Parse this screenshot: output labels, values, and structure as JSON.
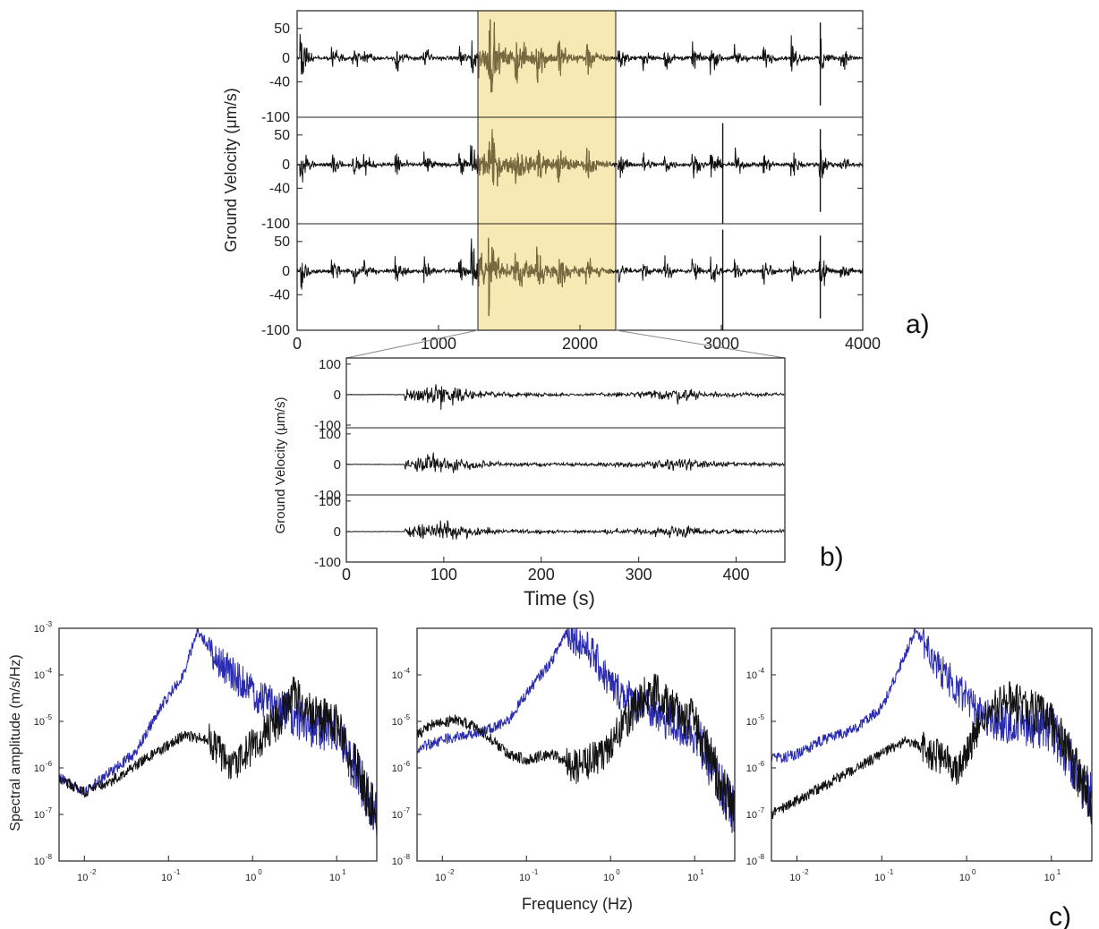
{
  "panel_labels": {
    "a": "a)",
    "b": "b)",
    "c": "c)"
  },
  "chart_data": [
    {
      "id": "a",
      "type": "line",
      "title": "",
      "xlabel": "",
      "ylabel": "Ground Velocity (μm/s)",
      "xlim": [
        0,
        4000
      ],
      "ylim": [
        -100,
        80
      ],
      "x_ticks": [
        0,
        1000,
        2000,
        3000,
        4000
      ],
      "y_ticks": [
        50,
        0,
        -40,
        -100
      ],
      "y_tick_labels": [
        "50",
        "0",
        "-40",
        "-100"
      ],
      "traces": 3,
      "highlight": {
        "x_start": 1280,
        "x_end": 2220,
        "color": "#f7e9b3"
      },
      "highlight_trace_color": "#7a6b3e",
      "trace_color": "#111111",
      "grid": false,
      "description": "three-component seismogram"
    },
    {
      "id": "b",
      "type": "line",
      "title": "",
      "xlabel": "Time (s)",
      "ylabel": "Ground Velocity (μm/s)",
      "xlim": [
        0,
        450
      ],
      "ylim": [
        -100,
        120
      ],
      "x_ticks": [
        0,
        100,
        200,
        300,
        400
      ],
      "y_ticks": [
        100,
        0,
        -100
      ],
      "traces": 3,
      "zoom_of_a": [
        1280,
        2220
      ],
      "trace_color": "#111111",
      "grid": false
    },
    {
      "id": "c",
      "type": "line",
      "title": "",
      "xlabel": "Frequency (Hz)",
      "ylabel": "Spectral amplitude (m/s/Hz)",
      "x_log": true,
      "y_log": true,
      "xlim": [
        0.005,
        30
      ],
      "ylim": [
        1e-08,
        0.001
      ],
      "x_ticks": [
        0.01,
        0.1,
        1,
        10
      ],
      "x_tick_labels": [
        [
          "10",
          "-2"
        ],
        [
          "10",
          "-1"
        ],
        [
          "10",
          "0"
        ],
        [
          "10",
          "1"
        ]
      ],
      "subplots": [
        {
          "y_tick_labels": [
            [
              "10",
              "-3"
            ],
            [
              "10",
              "-4"
            ],
            [
              "10",
              "-5"
            ],
            [
              "10",
              "-6"
            ],
            [
              "10",
              "-7"
            ],
            [
              "10",
              "-8"
            ]
          ],
          "y_tick_values": [
            0.001,
            0.0001,
            1e-05,
            1e-06,
            1e-07,
            1e-08
          ],
          "series": [
            {
              "color": "#2b2bb0",
              "f": [
                0.005,
                0.01,
                0.02,
                0.04,
                0.08,
                0.15,
                0.22,
                0.4,
                1,
                2,
                5,
                10,
                30
              ],
              "amp": [
                6e-07,
                3e-07,
                8e-07,
                2e-06,
                2e-05,
                0.0001,
                0.0009,
                0.0002,
                4e-05,
                2e-05,
                8e-06,
                6e-06,
                1e-07
              ]
            },
            {
              "color": "#111111",
              "f": [
                0.005,
                0.01,
                0.02,
                0.05,
                0.1,
                0.15,
                0.3,
                0.6,
                1,
                2,
                3,
                5,
                10,
                30
              ],
              "amp": [
                6e-07,
                3e-07,
                5e-07,
                1.5e-06,
                3e-06,
                5e-06,
                4e-06,
                1e-06,
                3e-06,
                1e-05,
                4e-05,
                1.5e-05,
                8e-06,
                1e-07
              ]
            }
          ]
        },
        {
          "y_tick_labels": [
            [
              "10",
              "-4"
            ],
            [
              "10",
              "-5"
            ],
            [
              "10",
              "-6"
            ],
            [
              "10",
              "-7"
            ],
            [
              "10",
              "-8"
            ]
          ],
          "y_tick_values": [
            0.0001,
            1e-05,
            1e-06,
            1e-07,
            1e-08
          ],
          "series": [
            {
              "color": "#2b2bb0",
              "f": [
                0.005,
                0.01,
                0.03,
                0.06,
                0.1,
                0.2,
                0.3,
                0.6,
                1,
                2,
                5,
                10,
                30
              ],
              "amp": [
                2.5e-06,
                4e-06,
                6e-06,
                1e-05,
                4e-05,
                0.0002,
                0.0009,
                0.0003,
                6e-05,
                2.5e-05,
                1e-05,
                6e-06,
                1e-07
              ]
            },
            {
              "color": "#111111",
              "f": [
                0.005,
                0.008,
                0.015,
                0.03,
                0.06,
                0.1,
                0.2,
                0.4,
                0.8,
                1.5,
                3,
                5,
                10,
                30
              ],
              "amp": [
                5e-06,
                9e-06,
                1.1e-05,
                6e-06,
                2e-06,
                1.5e-06,
                2e-06,
                1e-06,
                2e-06,
                1e-05,
                5e-05,
                2e-05,
                9e-06,
                1e-07
              ]
            }
          ]
        },
        {
          "y_tick_labels": [
            [
              "10",
              "-4"
            ],
            [
              "10",
              "-5"
            ],
            [
              "10",
              "-6"
            ],
            [
              "10",
              "-7"
            ],
            [
              "10",
              "-8"
            ]
          ],
          "y_tick_values": [
            0.0001,
            1e-05,
            1e-06,
            1e-07,
            1e-08
          ],
          "series": [
            {
              "color": "#2b2bb0",
              "f": [
                0.005,
                0.01,
                0.02,
                0.05,
                0.1,
                0.15,
                0.25,
                0.4,
                1,
                2,
                5,
                10,
                30
              ],
              "amp": [
                1.5e-06,
                2e-06,
                4e-06,
                7e-06,
                2e-05,
                0.0001,
                0.0009,
                0.0002,
                3e-05,
                1e-05,
                8e-06,
                7e-06,
                2e-07
              ]
            },
            {
              "color": "#111111",
              "f": [
                0.005,
                0.01,
                0.02,
                0.05,
                0.1,
                0.2,
                0.4,
                0.8,
                1.5,
                3,
                5,
                10,
                30
              ],
              "amp": [
                1e-07,
                2e-07,
                4e-07,
                1e-06,
                2e-06,
                4e-06,
                2e-06,
                1e-06,
                1e-05,
                3e-05,
                2e-05,
                1e-05,
                2e-07
              ]
            }
          ]
        }
      ]
    }
  ]
}
